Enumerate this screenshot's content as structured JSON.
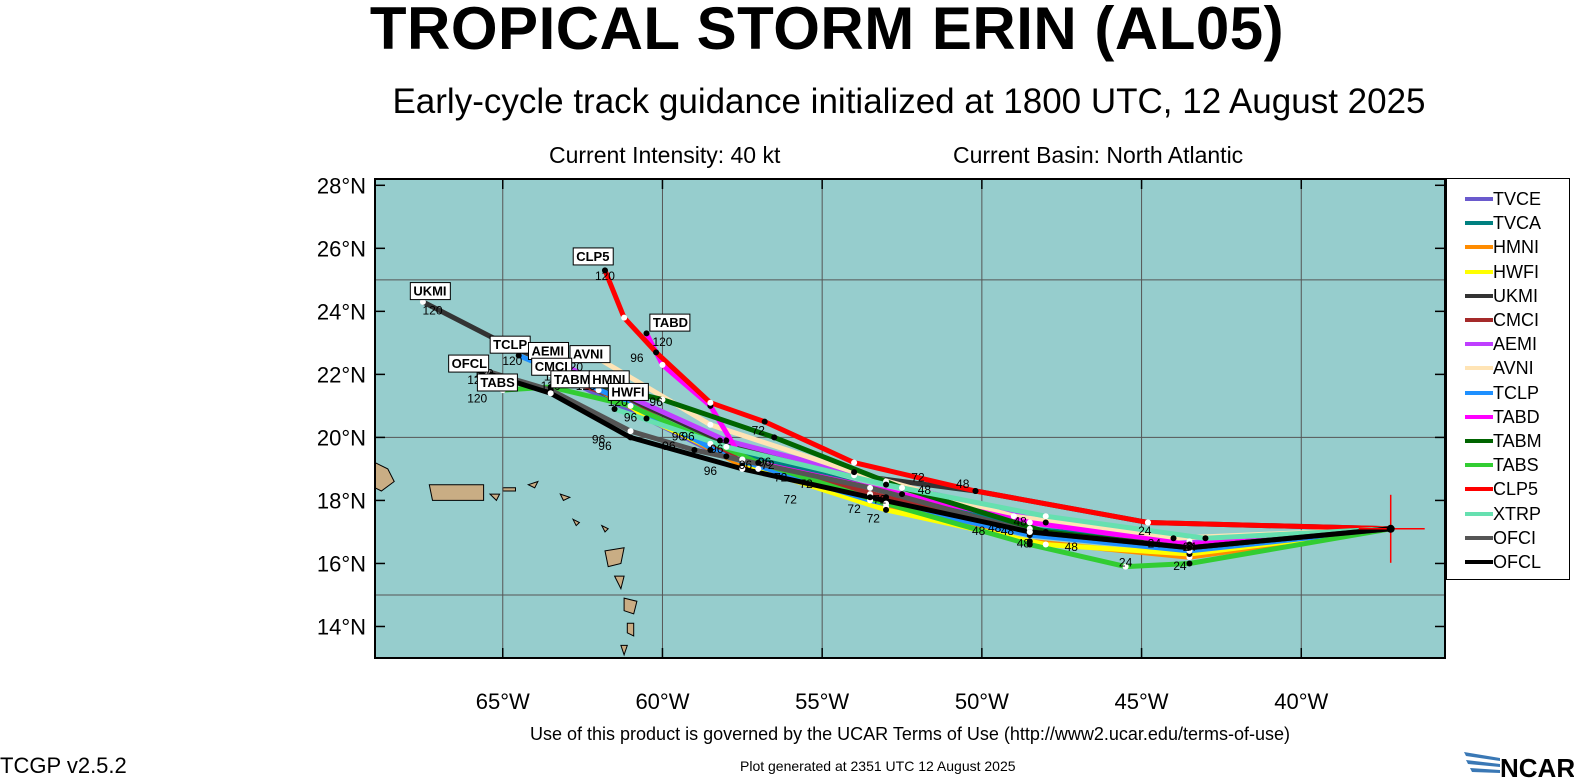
{
  "header": {
    "title": "TROPICAL STORM ERIN (AL05)",
    "subtitle": "Early-cycle track guidance initialized at 1800 UTC, 12 August 2025",
    "intensity": "Current Intensity: 40 kt",
    "basin": "Current Basin: North Atlantic"
  },
  "footer": {
    "terms": "Use of this product is governed by the UCAR Terms of Use (http://www2.ucar.edu/terms-of-use)",
    "generated": "Plot generated at 2351 UTC   12 August 2025",
    "version": "TCGP v2.5.2",
    "logo_text": "NCAR"
  },
  "map": {
    "lon_range": [
      -69,
      -35.5
    ],
    "lat_range": [
      13,
      28.2
    ],
    "lon_ticks": [
      {
        "v": -65,
        "label": "65°W"
      },
      {
        "v": -60,
        "label": "60°W"
      },
      {
        "v": -55,
        "label": "55°W"
      },
      {
        "v": -50,
        "label": "50°W"
      },
      {
        "v": -45,
        "label": "45°W"
      },
      {
        "v": -40,
        "label": "40°W"
      }
    ],
    "lat_ticks": [
      {
        "v": 14,
        "label": "14°N"
      },
      {
        "v": 16,
        "label": "16°N"
      },
      {
        "v": 18,
        "label": "18°N"
      },
      {
        "v": 20,
        "label": "20°N"
      },
      {
        "v": 22,
        "label": "22°N"
      },
      {
        "v": 24,
        "label": "24°N"
      },
      {
        "v": 26,
        "label": "26°N"
      },
      {
        "v": 28,
        "label": "28°N"
      }
    ],
    "grid_lons": [
      -65,
      -60,
      -55,
      -50,
      -45,
      -40
    ],
    "grid_lats": [
      15,
      20,
      25
    ],
    "ocean_color": "#96cdcd",
    "land_color": "#c9ad84",
    "storm_position": {
      "lon": -37.2,
      "lat": 17.1
    }
  },
  "tracks": [
    {
      "name": "TVCE",
      "color": "#6a5acd",
      "points": [
        [
          -37.2,
          17.1
        ],
        [
          -43.5,
          16.5
        ],
        [
          -48.5,
          17.0
        ],
        [
          -53.5,
          18.2
        ],
        [
          -58.5,
          19.6
        ],
        [
          -62.5,
          21.6
        ]
      ]
    },
    {
      "name": "TVCA",
      "color": "#008080",
      "points": [
        [
          -37.2,
          17.1
        ],
        [
          -43.5,
          16.6
        ],
        [
          -48.5,
          17.1
        ],
        [
          -53.5,
          18.4
        ],
        [
          -58.5,
          19.8
        ],
        [
          -62.5,
          21.7
        ]
      ]
    },
    {
      "name": "HMNI",
      "color": "#ff8c00",
      "points": [
        [
          -37.2,
          17.1
        ],
        [
          -43.5,
          16.2
        ],
        [
          -48.5,
          16.7
        ],
        [
          -53.0,
          17.8
        ],
        [
          -57.5,
          19.1
        ],
        [
          -62.0,
          21.5
        ],
        [
          -62.8,
          21.8
        ]
      ]
    },
    {
      "name": "HWFI",
      "color": "#ffff00",
      "points": [
        [
          -37.2,
          17.1
        ],
        [
          -43.5,
          16.3
        ],
        [
          -48.0,
          16.6
        ],
        [
          -53.0,
          17.7
        ],
        [
          -57.0,
          19.0
        ],
        [
          -60.5,
          20.6
        ],
        [
          -61.5,
          21.4
        ]
      ]
    },
    {
      "name": "UKMI",
      "color": "#333333",
      "points": [
        [
          -37.2,
          17.1
        ],
        [
          -44.8,
          17.3
        ],
        [
          -50.2,
          18.3
        ],
        [
          -54.0,
          18.8
        ],
        [
          -58.2,
          19.9
        ],
        [
          -62.5,
          21.9
        ],
        [
          -65.0,
          23.0
        ],
        [
          -67.5,
          24.3
        ]
      ]
    },
    {
      "name": "CMCI",
      "color": "#a52a2a",
      "points": [
        [
          -37.2,
          17.1
        ],
        [
          -43.5,
          16.5
        ],
        [
          -48.5,
          17.0
        ],
        [
          -53.0,
          18.1
        ],
        [
          -57.5,
          19.3
        ],
        [
          -61.5,
          21.3
        ],
        [
          -63.5,
          22.0
        ]
      ]
    },
    {
      "name": "AEMI",
      "color": "#bf3eff",
      "points": [
        [
          -37.2,
          17.1
        ],
        [
          -43.5,
          16.7
        ],
        [
          -48.0,
          17.3
        ],
        [
          -53.0,
          18.6
        ],
        [
          -58.0,
          19.9
        ],
        [
          -61.5,
          21.5
        ],
        [
          -63.5,
          22.5
        ]
      ]
    },
    {
      "name": "AVNI",
      "color": "#ffe4b5",
      "points": [
        [
          -37.2,
          17.1
        ],
        [
          -44.0,
          16.8
        ],
        [
          -49.0,
          17.5
        ],
        [
          -54.0,
          18.9
        ],
        [
          -58.5,
          20.4
        ],
        [
          -62.0,
          22.5
        ]
      ]
    },
    {
      "name": "TCLP",
      "color": "#1e90ff",
      "points": [
        [
          -37.2,
          17.1
        ],
        [
          -43.5,
          16.4
        ],
        [
          -48.5,
          16.9
        ],
        [
          -53.5,
          18.0
        ],
        [
          -58.0,
          19.4
        ],
        [
          -61.5,
          21.3
        ],
        [
          -64.5,
          22.6
        ]
      ]
    },
    {
      "name": "TABD",
      "color": "#ff00ff",
      "points": [
        [
          -37.2,
          17.1
        ],
        [
          -43.5,
          16.6
        ],
        [
          -48.5,
          17.3
        ],
        [
          -52.5,
          18.2
        ],
        [
          -57.5,
          19.3
        ],
        [
          -58.5,
          21.0
        ],
        [
          -60.0,
          22.3
        ],
        [
          -60.5,
          23.3
        ]
      ]
    },
    {
      "name": "TABM",
      "color": "#006400",
      "points": [
        [
          -37.2,
          17.1
        ],
        [
          -43.5,
          16.5
        ],
        [
          -48.0,
          17.0
        ],
        [
          -52.5,
          18.4
        ],
        [
          -56.5,
          20.0
        ],
        [
          -60.0,
          21.2
        ],
        [
          -62.5,
          21.8
        ]
      ]
    },
    {
      "name": "TABS",
      "color": "#32cd32",
      "points": [
        [
          -37.2,
          17.1
        ],
        [
          -43.5,
          16.0
        ],
        [
          -45.5,
          15.9
        ],
        [
          -48.5,
          16.6
        ],
        [
          -53.0,
          17.9
        ],
        [
          -57.0,
          19.2
        ],
        [
          -61.0,
          21.0
        ],
        [
          -63.5,
          21.6
        ],
        [
          -65.0,
          21.5
        ]
      ]
    },
    {
      "name": "CLP5",
      "color": "#ff0000",
      "points": [
        [
          -37.2,
          17.1
        ],
        [
          -44.8,
          17.3
        ],
        [
          -50.2,
          18.3
        ],
        [
          -54.0,
          19.2
        ],
        [
          -56.8,
          20.5
        ],
        [
          -58.5,
          21.1
        ],
        [
          -60.2,
          22.7
        ],
        [
          -61.2,
          23.8
        ],
        [
          -61.8,
          25.3
        ]
      ]
    },
    {
      "name": "XTRP",
      "color": "#66e0b0",
      "points": [
        [
          -37.2,
          17.1
        ],
        [
          -43.0,
          16.8
        ],
        [
          -48.0,
          17.5
        ],
        [
          -53.0,
          18.5
        ],
        [
          -58.0,
          19.7
        ],
        [
          -61.5,
          20.9
        ]
      ]
    },
    {
      "name": "OFCI",
      "color": "#555555",
      "points": [
        [
          -37.2,
          17.1
        ],
        [
          -43.5,
          16.5
        ],
        [
          -48.5,
          17.0
        ],
        [
          -53.5,
          18.4
        ],
        [
          -59.0,
          19.6
        ],
        [
          -61.0,
          20.2
        ],
        [
          -63.5,
          21.5
        ],
        [
          -65.5,
          22.1
        ]
      ]
    },
    {
      "name": "OFCL",
      "color": "#000000",
      "points": [
        [
          -37.2,
          17.1
        ],
        [
          -43.5,
          16.5
        ],
        [
          -48.5,
          17.0
        ],
        [
          -53.5,
          18.1
        ],
        [
          -57.5,
          19.0
        ],
        [
          -61.0,
          20.0
        ],
        [
          -63.5,
          21.4
        ],
        [
          -66.0,
          22.2
        ]
      ]
    }
  ],
  "hour_labels": [
    {
      "text": "24",
      "lon": -44.9,
      "lat": 16.9
    },
    {
      "text": "24",
      "lon": -44.6,
      "lat": 16.5
    },
    {
      "text": "24",
      "lon": -45.5,
      "lat": 15.9
    },
    {
      "text": "24",
      "lon": -43.5,
      "lat": 16.4
    },
    {
      "text": "24",
      "lon": -43.8,
      "lat": 15.8
    },
    {
      "text": "48",
      "lon": -51.8,
      "lat": 18.2
    },
    {
      "text": "48",
      "lon": -49.6,
      "lat": 17.0
    },
    {
      "text": "48",
      "lon": -50.1,
      "lat": 16.9
    },
    {
      "text": "48",
      "lon": -48.7,
      "lat": 16.5
    },
    {
      "text": "48",
      "lon": -48.8,
      "lat": 17.2
    },
    {
      "text": "48",
      "lon": -47.2,
      "lat": 16.4
    },
    {
      "text": "48",
      "lon": -50.6,
      "lat": 18.4
    },
    {
      "text": "48",
      "lon": -49.2,
      "lat": 16.9
    },
    {
      "text": "72",
      "lon": -55.5,
      "lat": 18.4
    },
    {
      "text": "72",
      "lon": -53.2,
      "lat": 17.9
    },
    {
      "text": "72",
      "lon": -52.0,
      "lat": 18.6
    },
    {
      "text": "72",
      "lon": -54.0,
      "lat": 17.6
    },
    {
      "text": "72",
      "lon": -56.0,
      "lat": 17.9
    },
    {
      "text": "72",
      "lon": -56.3,
      "lat": 18.6
    },
    {
      "text": "72",
      "lon": -53.4,
      "lat": 17.3
    },
    {
      "text": "72",
      "lon": -57.0,
      "lat": 20.1
    },
    {
      "text": "72",
      "lon": -56.7,
      "lat": 19.0
    },
    {
      "text": "96",
      "lon": -60.2,
      "lat": 21.0
    },
    {
      "text": "96",
      "lon": -61.0,
      "lat": 20.5
    },
    {
      "text": "96",
      "lon": -59.8,
      "lat": 19.6
    },
    {
      "text": "96",
      "lon": -59.2,
      "lat": 19.9
    },
    {
      "text": "96",
      "lon": -58.3,
      "lat": 19.5
    },
    {
      "text": "96",
      "lon": -62.0,
      "lat": 19.8
    },
    {
      "text": "96",
      "lon": -61.8,
      "lat": 19.6
    },
    {
      "text": "96",
      "lon": -58.5,
      "lat": 18.8
    },
    {
      "text": "96",
      "lon": -57.4,
      "lat": 19.0
    },
    {
      "text": "96",
      "lon": -60.8,
      "lat": 22.4
    },
    {
      "text": "96",
      "lon": -56.8,
      "lat": 19.1
    },
    {
      "text": "96",
      "lon": -59.5,
      "lat": 19.9
    },
    {
      "text": "120",
      "lon": -61.8,
      "lat": 25.0
    },
    {
      "text": "120",
      "lon": -67.2,
      "lat": 23.9
    },
    {
      "text": "120",
      "lon": -60.0,
      "lat": 22.9
    },
    {
      "text": "120",
      "lon": -64.7,
      "lat": 22.3
    },
    {
      "text": "120",
      "lon": -63.8,
      "lat": 22.1
    },
    {
      "text": "120",
      "lon": -62.8,
      "lat": 22.1
    },
    {
      "text": "120",
      "lon": -63.5,
      "lat": 21.5
    },
    {
      "text": "120",
      "lon": -62.4,
      "lat": 21.5
    },
    {
      "text": "120",
      "lon": -65.6,
      "lat": 21.9
    },
    {
      "text": "120",
      "lon": -65.8,
      "lat": 21.7
    },
    {
      "text": "120",
      "lon": -65.8,
      "lat": 21.1
    },
    {
      "text": "120",
      "lon": -61.4,
      "lat": 21.0
    },
    {
      "text": "120",
      "lon": -63.4,
      "lat": 21.8
    }
  ],
  "model_labels": [
    {
      "text": "CLP5",
      "lon": -62.7,
      "lat": 25.6
    },
    {
      "text": "UKMI",
      "lon": -67.8,
      "lat": 24.5
    },
    {
      "text": "TABD",
      "lon": -60.3,
      "lat": 23.5
    },
    {
      "text": "TCLP",
      "lon": -65.3,
      "lat": 22.8
    },
    {
      "text": "AEMI",
      "lon": -64.1,
      "lat": 22.6
    },
    {
      "text": "AVNI",
      "lon": -62.8,
      "lat": 22.5
    },
    {
      "text": "CMCI",
      "lon": -64.0,
      "lat": 22.1
    },
    {
      "text": "OFCL",
      "lon": -66.6,
      "lat": 22.2
    },
    {
      "text": "TABM",
      "lon": -63.4,
      "lat": 21.7
    },
    {
      "text": "HMNI",
      "lon": -62.2,
      "lat": 21.7
    },
    {
      "text": "HWFI",
      "lon": -61.6,
      "lat": 21.3
    },
    {
      "text": "TABS",
      "lon": -65.7,
      "lat": 21.6
    }
  ],
  "legend": {
    "items": [
      {
        "name": "TVCE",
        "color": "#6a5acd"
      },
      {
        "name": "TVCA",
        "color": "#008080"
      },
      {
        "name": "HMNI",
        "color": "#ff8c00"
      },
      {
        "name": "HWFI",
        "color": "#ffff00"
      },
      {
        "name": "UKMI",
        "color": "#333333"
      },
      {
        "name": "CMCI",
        "color": "#a52a2a"
      },
      {
        "name": "AEMI",
        "color": "#bf3eff"
      },
      {
        "name": "AVNI",
        "color": "#ffe4b5"
      },
      {
        "name": "TCLP",
        "color": "#1e90ff"
      },
      {
        "name": "TABD",
        "color": "#ff00ff"
      },
      {
        "name": "TABM",
        "color": "#006400"
      },
      {
        "name": "TABS",
        "color": "#32cd32"
      },
      {
        "name": "CLP5",
        "color": "#ff0000"
      },
      {
        "name": "XTRP",
        "color": "#66e0b0"
      },
      {
        "name": "OFCI",
        "color": "#555555"
      },
      {
        "name": "OFCL",
        "color": "#000000"
      }
    ]
  }
}
